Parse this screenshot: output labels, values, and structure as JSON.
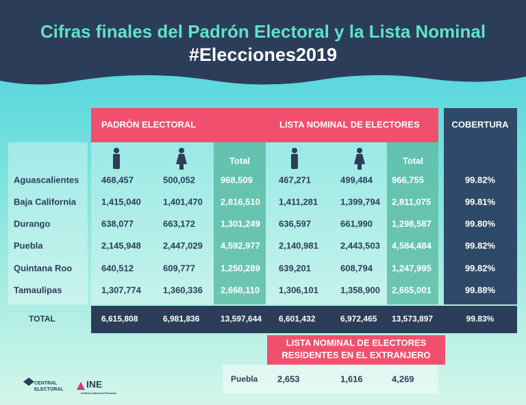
{
  "header": {
    "title": "Cifras finales del Padrón Electoral y la Lista Nominal",
    "hashtag": "#Elecciones2019"
  },
  "table": {
    "groups": [
      "PADRÓN ELECTORAL",
      "LISTA NOMINAL DE ELECTORES",
      "COBERTURA"
    ],
    "total_headers": [
      "Total",
      "Total"
    ],
    "rows": [
      [
        "Aguascalientes",
        "468,457",
        "500,052",
        "968,509",
        "467,271",
        "499,484",
        "966,755",
        "99.82%"
      ],
      [
        "Baja California",
        "1,415,040",
        "1,401,470",
        "2,816,510",
        "1,411,281",
        "1,399,794",
        "2,811,075",
        "99.81%"
      ],
      [
        "Durango",
        "638,077",
        "663,172",
        "1,301,249",
        "636,597",
        "661,990",
        "1,298,587",
        "99.80%"
      ],
      [
        "Puebla",
        "2,145,948",
        "2,447,029",
        "4,592,977",
        "2,140,981",
        "2,443,503",
        "4,584,484",
        "99.82%"
      ],
      [
        "Quintana Roo",
        "640,512",
        "609,777",
        "1,250,289",
        "639,201",
        "608,794",
        "1,247,995",
        "99.82%"
      ],
      [
        "Tamaulipas",
        "1,307,774",
        "1,360,336",
        "2,668,110",
        "1,306,101",
        "1,358,900",
        "2,665,001",
        "99.88%"
      ]
    ],
    "total": [
      "TOTAL",
      "6,615,808",
      "6,981,836",
      "13,597,644",
      "6,601,432",
      "6,972,465",
      "13,573,897",
      "99.83%"
    ]
  },
  "abroad": {
    "title": [
      "LISTA NOMINAL DE ELECTORES",
      "RESIDENTES EN EL EXTRANJERO"
    ],
    "row": [
      "Puebla",
      "2,653",
      "1,616",
      "4,269"
    ]
  },
  "logos": {
    "central": [
      "CENTRAL",
      "ELECTORAL"
    ],
    "ine": "INE",
    "ine_sub": "Instituto Nacional Electoral"
  }
}
